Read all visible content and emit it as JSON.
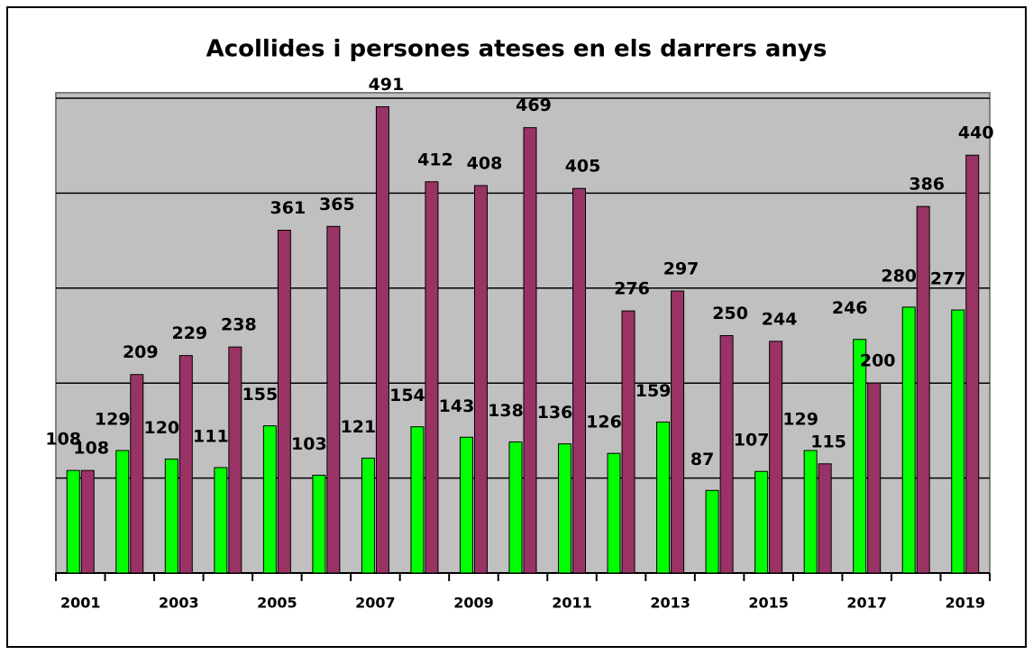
{
  "chart_data": {
    "type": "bar",
    "title": "Acollides i persones ateses en els darrers anys",
    "categories": [
      "2001",
      null,
      "2003",
      null,
      "2005",
      null,
      "2007",
      null,
      "2009",
      null,
      "2011",
      null,
      "2013",
      null,
      "2015",
      null,
      "2017",
      null,
      "2019"
    ],
    "series": [
      {
        "color": "#00ff00",
        "values": [
          108,
          129,
          120,
          111,
          155,
          103,
          121,
          154,
          143,
          138,
          136,
          126,
          159,
          87,
          107,
          129,
          246,
          280,
          277
        ]
      },
      {
        "color": "#993366",
        "values": [
          108,
          209,
          229,
          238,
          361,
          365,
          491,
          412,
          408,
          469,
          405,
          276,
          297,
          250,
          244,
          115,
          200,
          386,
          440
        ]
      }
    ],
    "ylim": [
      0,
      500
    ],
    "yticks": [
      0,
      100,
      200,
      300,
      400,
      500
    ],
    "grid": true
  }
}
